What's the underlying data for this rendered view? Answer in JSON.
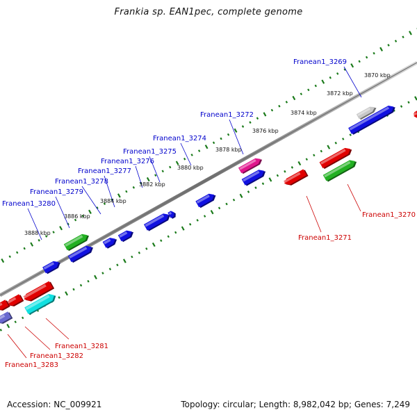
{
  "title": "Frankia sp. EAN1pec, complete genome",
  "accession_text": "Accession: NC_009921",
  "summary_text": "Topology: circular; Length: 8,982,042 bp; Genes: 7,249",
  "colors": {
    "backbone": "#888888",
    "tick_dot": "#1a7a1a",
    "label_forward": "#0000cc",
    "label_reverse": "#cc0000",
    "gene_blue": "#1010e0",
    "gene_red": "#e00000",
    "gene_green": "#22b022",
    "gene_grey": "#c8c8c8",
    "gene_pink": "#e0148c",
    "gene_cyan": "#10e0e0",
    "gene_slate": "#6a6ad0"
  },
  "ticks_outer": [
    "3870 kbp",
    "3872 kbp",
    "3874 kbp",
    "3876 kbp",
    "3878 kbp",
    "3880 kbp",
    "3882 kbp",
    "3884 kbp",
    "3886 kbp",
    "3888 kbp"
  ],
  "gene_labels_forward": [
    "Franean1_3269",
    "Franean1_3272",
    "Franean1_3274",
    "Franean1_3275",
    "Franean1_3276",
    "Franean1_3277",
    "Franean1_3278",
    "Franean1_3279",
    "Franean1_3280"
  ],
  "gene_labels_reverse": [
    "Franean1_3270",
    "Franean1_3271",
    "Franean1_3281",
    "Franean1_3282",
    "Franean1_3283"
  ]
}
